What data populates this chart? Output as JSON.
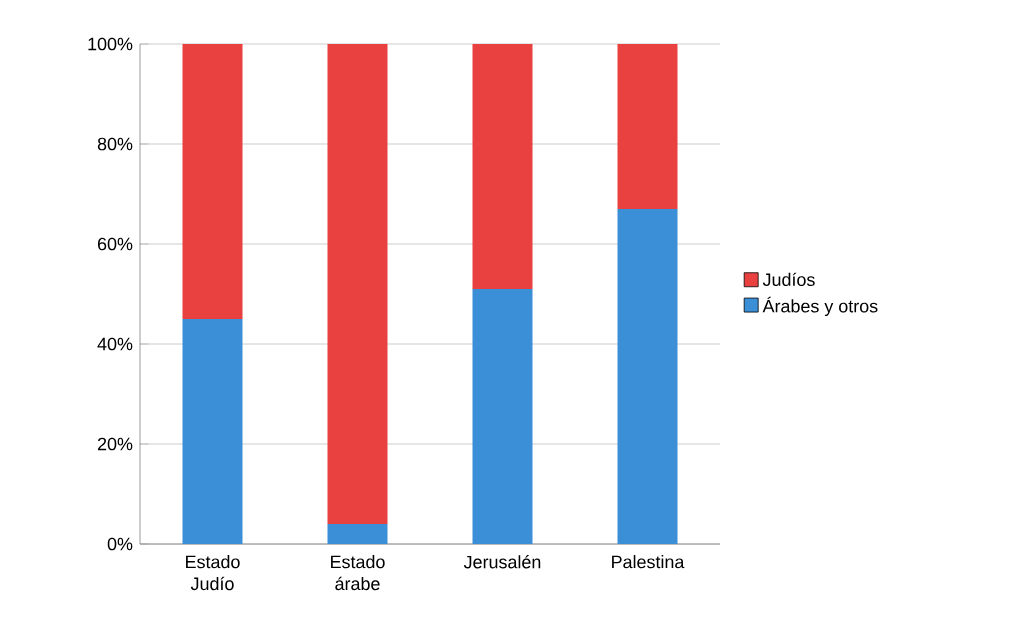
{
  "chart_data": {
    "type": "bar",
    "stacked": true,
    "categories": [
      "Estado Judío",
      "Estado árabe",
      "Jerusalén",
      "Palestina"
    ],
    "series": [
      {
        "name": "Árabes y otros",
        "color": "#3a8fd6",
        "values": [
          45,
          4,
          51,
          67
        ]
      },
      {
        "name": "Judíos",
        "color": "#e8413f",
        "values": [
          55,
          96,
          49,
          33
        ]
      }
    ],
    "ylim": [
      0,
      100
    ],
    "yticks": [
      {
        "value": 0,
        "label": "0%"
      },
      {
        "value": 20,
        "label": "20%"
      },
      {
        "value": 40,
        "label": "40%"
      },
      {
        "value": 60,
        "label": "60%"
      },
      {
        "value": 80,
        "label": "80%"
      },
      {
        "value": 100,
        "label": "100%"
      }
    ],
    "grid": "y",
    "legend": "right"
  }
}
